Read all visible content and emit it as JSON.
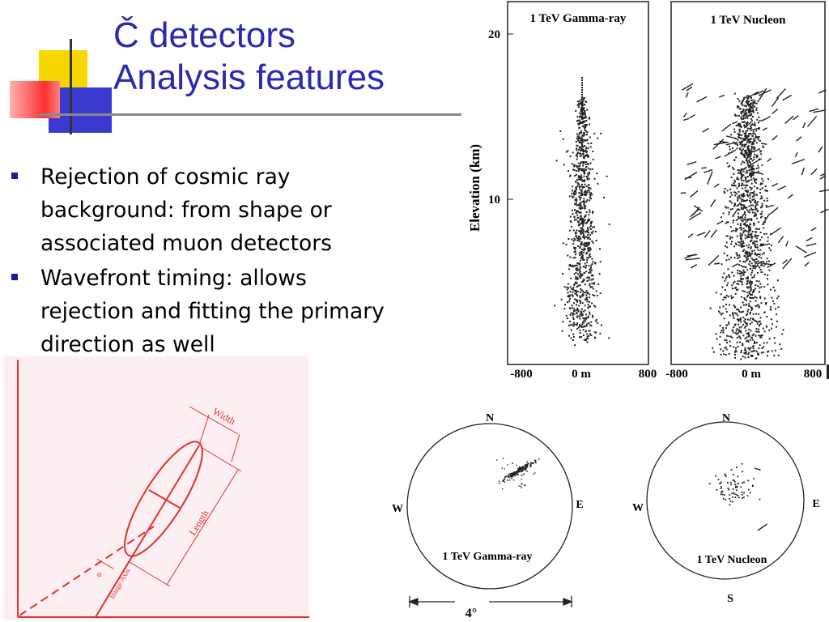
{
  "slide": {
    "title_line1": "Č detectors",
    "title_line2": "Analysis features",
    "bullets": [
      "Rejection of cosmic ray background: from shape or associated muon detectors",
      "Wavefront timing: allows rejection and fitting the primary direction as well"
    ]
  },
  "shower_plot": {
    "ylabel": "Elevation (km)",
    "yticks": [
      "20",
      "10"
    ],
    "panel_left_title": "1 TeV Gamma-ray",
    "panel_right_title": "1 TeV Nucleon",
    "xticks_left": [
      "-800",
      "0 m",
      "800"
    ],
    "xticks_right": [
      "-800",
      "0 m",
      "800"
    ]
  },
  "sky_maps": {
    "left": {
      "n": "N",
      "s": "",
      "e": "E",
      "w": "W",
      "label": "1 TeV Gamma-ray"
    },
    "right": {
      "n": "N",
      "s": "S",
      "e": "E",
      "w": "W",
      "label": "1 TeV Nucleon"
    },
    "scale_label": "4°"
  },
  "hillas_diagram": {
    "width_label": "Width",
    "length_label": "Length",
    "axis_label": "Image Axis",
    "alpha_label": "α",
    "color": "#e03030"
  }
}
